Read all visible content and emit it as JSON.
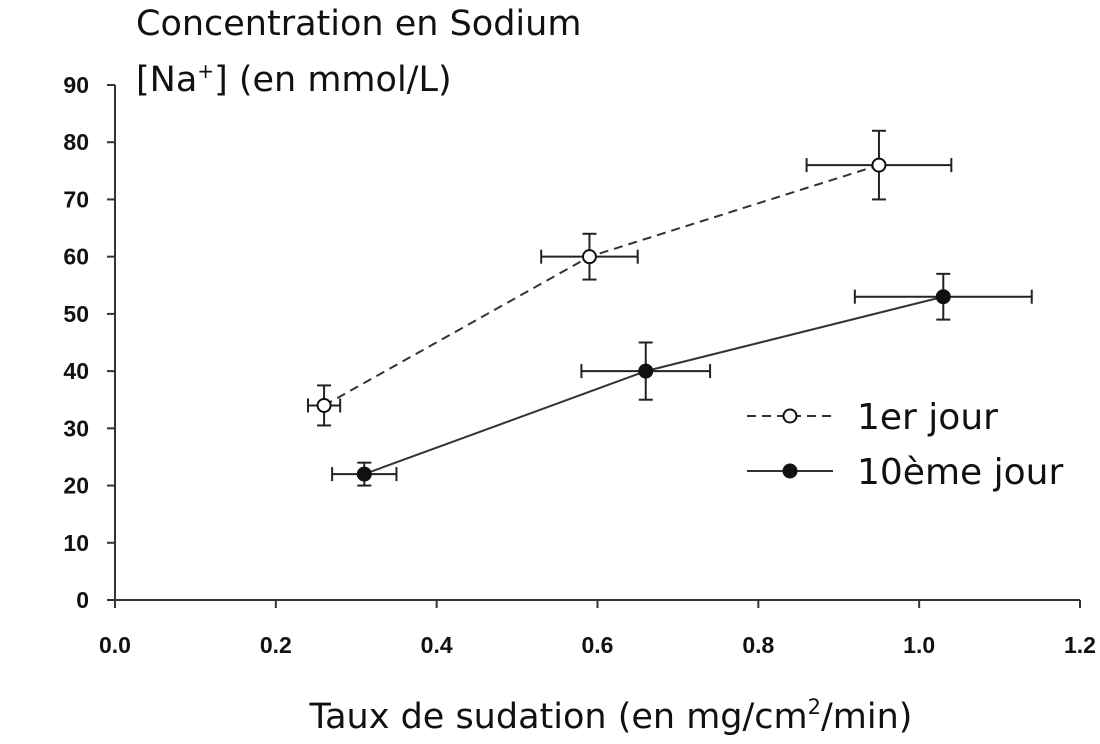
{
  "chart_data": {
    "type": "scatter",
    "ylabel_line1": "Concentration en Sodium",
    "ylabel_line2_prefix": "[Na",
    "ylabel_line2_sup": "+",
    "ylabel_line2_suffix": "] (en mmol/L)",
    "xlabel_prefix": "Taux de sudation (en mg/cm",
    "xlabel_sup": "2",
    "xlabel_suffix": "/min)",
    "xlim": [
      0.0,
      1.2
    ],
    "ylim": [
      0,
      90
    ],
    "xticks": [
      "0.0",
      "0.2",
      "0.4",
      "0.6",
      "0.8",
      "1.0",
      "1.2"
    ],
    "yticks": [
      "0",
      "10",
      "20",
      "30",
      "40",
      "50",
      "60",
      "70",
      "80",
      "90"
    ],
    "grid": false,
    "legend_position": "center-right",
    "series": [
      {
        "name": "1er jour",
        "style": "dashed",
        "marker": "open-circle",
        "points": [
          {
            "x": 0.26,
            "y": 34,
            "x_err": [
              0.24,
              0.28
            ],
            "y_err": [
              30.5,
              37.5
            ]
          },
          {
            "x": 0.59,
            "y": 60,
            "x_err": [
              0.53,
              0.65
            ],
            "y_err": [
              56,
              64
            ]
          },
          {
            "x": 0.95,
            "y": 76,
            "x_err": [
              0.86,
              1.04
            ],
            "y_err": [
              70,
              82
            ]
          }
        ]
      },
      {
        "name": "10ème jour",
        "style": "solid",
        "marker": "filled-circle",
        "points": [
          {
            "x": 0.31,
            "y": 22,
            "x_err": [
              0.27,
              0.35
            ],
            "y_err": [
              20,
              24
            ]
          },
          {
            "x": 0.66,
            "y": 40,
            "x_err": [
              0.58,
              0.74
            ],
            "y_err": [
              35,
              45
            ]
          },
          {
            "x": 1.03,
            "y": 53,
            "x_err": [
              0.92,
              1.14
            ],
            "y_err": [
              49,
              57
            ]
          }
        ]
      }
    ]
  }
}
